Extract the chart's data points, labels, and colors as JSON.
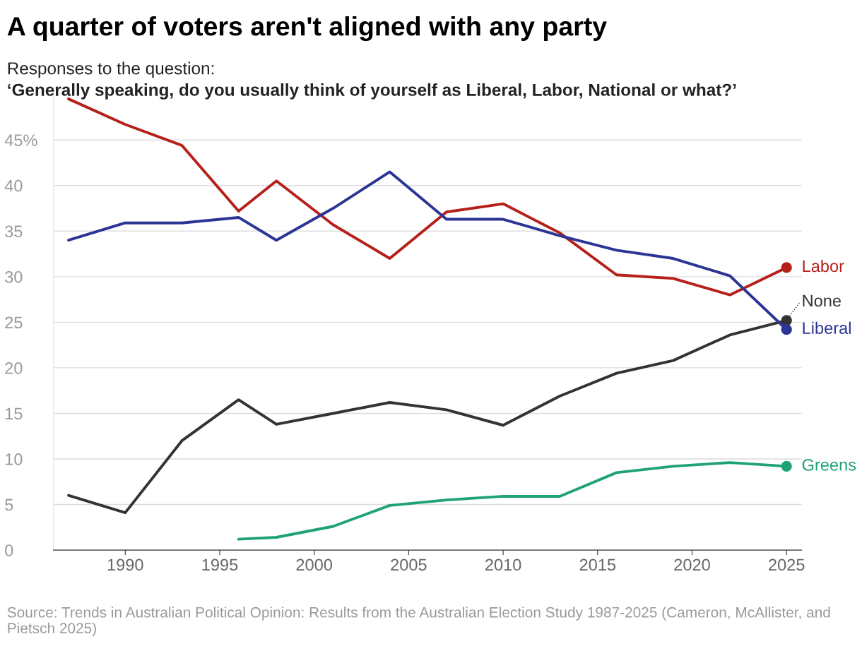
{
  "chart_data": {
    "type": "line",
    "title": "A quarter of voters aren't aligned with any party",
    "subtitle": "Responses to the question:\n‘Generally speaking, do you usually think of yourself as Liberal, Labor, National or what?’",
    "x": [
      1987,
      1990,
      1993,
      1996,
      1998,
      2001,
      2004,
      2007,
      2010,
      2013,
      2016,
      2019,
      2022,
      2025
    ],
    "series": [
      {
        "name": "Labor",
        "color": "#b5201a",
        "values": [
          49.5,
          46.7,
          44.4,
          37.2,
          40.5,
          35.7,
          32.0,
          37.1,
          38.0,
          34.8,
          30.2,
          29.8,
          28.0,
          31.0
        ]
      },
      {
        "name": "None",
        "color": "#333333",
        "values": [
          6.0,
          4.1,
          12.0,
          16.5,
          13.8,
          15.0,
          16.2,
          15.4,
          13.7,
          16.9,
          19.4,
          20.8,
          23.6,
          25.2
        ]
      },
      {
        "name": "Liberal",
        "color": "#2b3594",
        "values": [
          34.0,
          35.9,
          35.9,
          36.5,
          34.0,
          37.5,
          41.5,
          36.3,
          36.3,
          34.5,
          32.9,
          32.0,
          30.1,
          24.2
        ]
      },
      {
        "name": "Greens",
        "color": "#1fa27a",
        "x": [
          1996,
          1998,
          2001,
          2004,
          2007,
          2010,
          2013,
          2016,
          2019,
          2022,
          2025
        ],
        "values": [
          1.2,
          1.4,
          2.6,
          4.9,
          5.5,
          5.9,
          5.9,
          8.5,
          9.2,
          9.6,
          9.2
        ]
      }
    ],
    "xlim": [
      1986.2,
      2025.8
    ],
    "xticks": [
      1990,
      1995,
      2000,
      2005,
      2010,
      2015,
      2020,
      2025
    ],
    "ylim": [
      0,
      50
    ],
    "yticks": [
      0,
      5,
      10,
      15,
      20,
      25,
      30,
      35,
      40,
      {
        "value": 45,
        "label": "45%"
      }
    ],
    "grid": "y",
    "legend": "right",
    "annotations": [
      "Source: Trends in Australian Political Opinion: Results from the Australian Election Study 1987-2025 (Cameron, McAllister, and Pietsch 2025)"
    ]
  }
}
